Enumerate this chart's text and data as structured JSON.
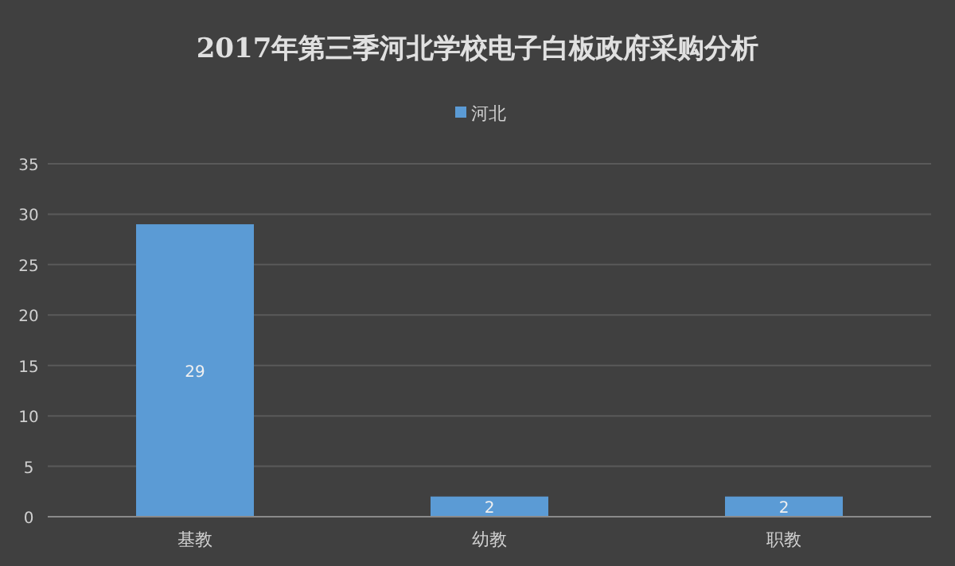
{
  "chart_data": {
    "type": "bar",
    "title": "2017年第三季河北学校电子白板政府采购分析",
    "categories": [
      "基教",
      "幼教",
      "职教"
    ],
    "series": [
      {
        "name": "河北",
        "color": "#5b9bd5",
        "values": [
          29,
          2,
          2
        ]
      }
    ],
    "ylim": [
      0,
      35
    ],
    "yticks": [
      0,
      5,
      10,
      15,
      20,
      25,
      30,
      35
    ],
    "grid": "y",
    "legend": "top",
    "data_labels": true
  }
}
